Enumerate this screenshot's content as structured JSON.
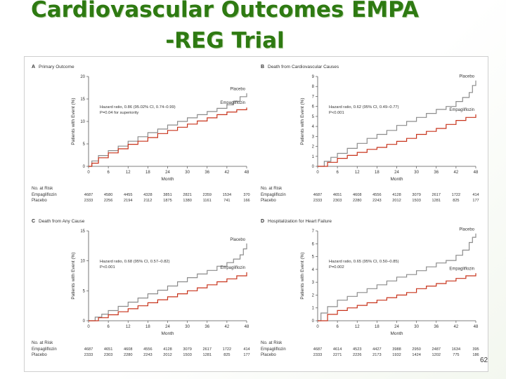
{
  "title": {
    "line1": "Cardiovascular Outcomes EMPA",
    "line2": "-REG  Trial"
  },
  "page_number": "62",
  "colors": {
    "title": "#2e7a12",
    "placebo": "#8c8c8c",
    "empagliflozin": "#c8331b"
  },
  "chart_data": [
    {
      "type": "line",
      "panel_label": "A",
      "title": "Primary Outcome",
      "xlabel": "Month",
      "ylabel": "Patients with Event (%)",
      "xlim": [
        0,
        48
      ],
      "ylim": [
        0,
        20
      ],
      "xticks": [
        0,
        6,
        12,
        18,
        24,
        30,
        36,
        42,
        48
      ],
      "yticks": [
        0,
        5,
        10,
        15,
        20
      ],
      "annotation": [
        "Hazard ratio, 0.86 (95.02% CI, 0.74–0.99)",
        "P=0.04 for superiority"
      ],
      "series": [
        {
          "name": "Placebo",
          "x": [
            0,
            1,
            3,
            6,
            9,
            12,
            15,
            18,
            21,
            24,
            27,
            30,
            33,
            36,
            39,
            42,
            44,
            46,
            48
          ],
          "y": [
            0,
            1.2,
            2.4,
            3.5,
            4.5,
            5.6,
            6.6,
            7.5,
            8.3,
            9.2,
            10.0,
            10.8,
            11.5,
            12.2,
            12.9,
            13.7,
            14.5,
            15.5,
            16.3
          ]
        },
        {
          "name": "Empagliflozin",
          "x": [
            0,
            1,
            3,
            6,
            9,
            12,
            15,
            18,
            21,
            24,
            27,
            30,
            33,
            36,
            39,
            42,
            45,
            48
          ],
          "y": [
            0,
            0.7,
            1.9,
            3.0,
            3.9,
            4.9,
            5.6,
            6.4,
            7.3,
            8.0,
            8.7,
            9.4,
            10.1,
            10.8,
            11.5,
            12.1,
            12.6,
            13.1
          ]
        }
      ],
      "risk_table": {
        "header": "No. at Risk",
        "rows": [
          {
            "label": "Empagliflozin",
            "values": [
              "4687",
              "4580",
              "4455",
              "4328",
              "3851",
              "2821",
              "2359",
              "1534",
              "370"
            ]
          },
          {
            "label": "Placebo",
            "values": [
              "2333",
              "2256",
              "2194",
              "2112",
              "1875",
              "1380",
              "1161",
              "741",
              "166"
            ]
          }
        ]
      }
    },
    {
      "type": "line",
      "panel_label": "B",
      "title": "Death from Cardiovascular Causes",
      "xlabel": "Month",
      "ylabel": "Patients with Event (%)",
      "xlim": [
        0,
        48
      ],
      "ylim": [
        0,
        9
      ],
      "xticks": [
        0,
        6,
        12,
        18,
        24,
        30,
        36,
        42,
        48
      ],
      "yticks": [
        0,
        1,
        2,
        3,
        4,
        5,
        6,
        7,
        8,
        9
      ],
      "annotation": [
        "Hazard ratio, 0.62 (95% CI, 0.49–0.77)",
        "P<0.001"
      ],
      "series": [
        {
          "name": "Placebo",
          "x": [
            0,
            2,
            4,
            6,
            9,
            12,
            15,
            18,
            21,
            24,
            27,
            30,
            33,
            36,
            39,
            42,
            44,
            46,
            47,
            48
          ],
          "y": [
            0,
            0.5,
            0.9,
            1.3,
            1.8,
            2.3,
            2.8,
            3.2,
            3.6,
            4.1,
            4.5,
            4.9,
            5.3,
            5.7,
            6.0,
            6.5,
            6.9,
            7.4,
            8.1,
            8.6
          ]
        },
        {
          "name": "Empagliflozin",
          "x": [
            0,
            3,
            6,
            9,
            12,
            15,
            18,
            21,
            24,
            27,
            30,
            33,
            36,
            39,
            42,
            45,
            48
          ],
          "y": [
            0,
            0.4,
            0.8,
            1.1,
            1.4,
            1.7,
            1.9,
            2.2,
            2.5,
            2.8,
            3.2,
            3.5,
            3.8,
            4.2,
            4.6,
            4.9,
            5.2
          ]
        }
      ],
      "risk_table": {
        "header": "No. at Risk",
        "rows": [
          {
            "label": "Empagliflozin",
            "values": [
              "4687",
              "4651",
              "4608",
              "4556",
              "4128",
              "3079",
              "2617",
              "1722",
              "414"
            ]
          },
          {
            "label": "Placebo",
            "values": [
              "2333",
              "2303",
              "2280",
              "2243",
              "2012",
              "1503",
              "1281",
              "825",
              "177"
            ]
          }
        ]
      }
    },
    {
      "type": "line",
      "panel_label": "C",
      "title": "Death from Any Cause",
      "xlabel": "Month",
      "ylabel": "Patients with Event (%)",
      "xlim": [
        0,
        48
      ],
      "ylim": [
        0,
        15
      ],
      "xticks": [
        0,
        6,
        12,
        18,
        24,
        30,
        36,
        42,
        48
      ],
      "yticks": [
        0,
        5,
        10,
        15
      ],
      "annotation": [
        "Hazard ratio, 0.68 (95% CI, 0.57–0.82)",
        "P<0.001"
      ],
      "series": [
        {
          "name": "Placebo",
          "x": [
            0,
            2,
            4,
            6,
            9,
            12,
            15,
            18,
            21,
            24,
            27,
            30,
            33,
            36,
            39,
            42,
            44,
            46,
            47,
            48
          ],
          "y": [
            0,
            0.6,
            1.1,
            1.7,
            2.4,
            3.1,
            3.8,
            4.5,
            5.1,
            5.8,
            6.5,
            7.2,
            7.8,
            8.4,
            9.1,
            9.7,
            10.3,
            11.0,
            12.0,
            12.9
          ]
        },
        {
          "name": "Empagliflozin",
          "x": [
            0,
            3,
            6,
            9,
            12,
            15,
            18,
            21,
            24,
            27,
            30,
            33,
            36,
            39,
            42,
            45,
            48
          ],
          "y": [
            0,
            0.5,
            1.0,
            1.5,
            2.0,
            2.5,
            3.0,
            3.5,
            4.0,
            4.5,
            5.0,
            5.5,
            6.0,
            6.5,
            7.0,
            7.5,
            8.1
          ]
        }
      ],
      "risk_table": {
        "header": "No. at Risk",
        "rows": [
          {
            "label": "Empagliflozin",
            "values": [
              "4687",
              "4651",
              "4608",
              "4556",
              "4128",
              "3079",
              "2617",
              "1722",
              "414"
            ]
          },
          {
            "label": "Placebo",
            "values": [
              "2333",
              "2303",
              "2280",
              "2243",
              "2012",
              "1503",
              "1281",
              "825",
              "177"
            ]
          }
        ]
      }
    },
    {
      "type": "line",
      "panel_label": "D",
      "title": "Hospitalization for Heart Failure",
      "xlabel": "Month",
      "ylabel": "Patients with Event (%)",
      "xlim": [
        0,
        48
      ],
      "ylim": [
        0,
        7
      ],
      "xticks": [
        0,
        6,
        12,
        18,
        24,
        30,
        36,
        42,
        48
      ],
      "yticks": [
        0,
        1,
        2,
        3,
        4,
        5,
        6,
        7
      ],
      "annotation": [
        "Hazard ratio, 0.65 (95% CI, 0.50–0.85)",
        "P=0.002"
      ],
      "series": [
        {
          "name": "Placebo",
          "x": [
            0,
            1,
            3,
            6,
            9,
            12,
            15,
            18,
            21,
            24,
            27,
            30,
            33,
            36,
            39,
            42,
            44,
            46,
            47,
            48
          ],
          "y": [
            0,
            0.6,
            1.1,
            1.6,
            1.9,
            2.2,
            2.5,
            2.8,
            3.1,
            3.4,
            3.6,
            3.9,
            4.2,
            4.5,
            4.7,
            5.1,
            5.5,
            6.1,
            6.5,
            6.8
          ]
        },
        {
          "name": "Empagliflozin",
          "x": [
            0,
            3,
            6,
            9,
            12,
            15,
            18,
            21,
            24,
            27,
            30,
            33,
            36,
            39,
            42,
            45,
            48
          ],
          "y": [
            0,
            0.5,
            0.8,
            1.0,
            1.2,
            1.4,
            1.6,
            1.8,
            2.0,
            2.2,
            2.5,
            2.7,
            2.9,
            3.1,
            3.3,
            3.5,
            3.7
          ]
        }
      ],
      "risk_table": {
        "header": "No. at Risk",
        "rows": [
          {
            "label": "Empagliflozin",
            "values": [
              "4687",
              "4614",
              "4523",
              "4427",
              "3988",
              "2950",
              "2487",
              "1634",
              "395"
            ]
          },
          {
            "label": "Placebo",
            "values": [
              "2333",
              "2271",
              "2226",
              "2173",
              "1932",
              "1424",
              "1202",
              "775",
              "186"
            ]
          }
        ]
      }
    }
  ]
}
